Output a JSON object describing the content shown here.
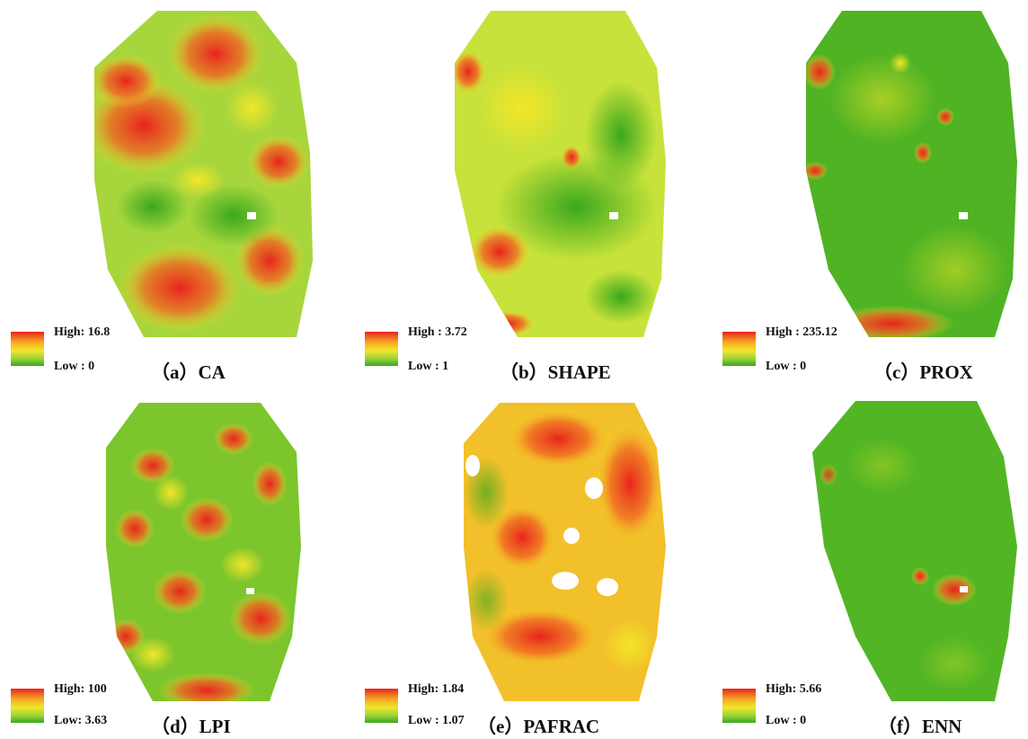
{
  "panels": [
    {
      "letter": "（a）CA",
      "high": "High: 16.8",
      "low": "Low : 0",
      "palette": "ca"
    },
    {
      "letter": "（b）SHAPE",
      "high": "High : 3.72",
      "low": "Low : 1",
      "palette": "shape"
    },
    {
      "letter": "（c）PROX",
      "high": "High : 235.12",
      "low": "Low : 0",
      "palette": "prox"
    },
    {
      "letter": "（d）LPI",
      "high": "High: 100",
      "low": "Low: 3.63",
      "palette": "lpi"
    },
    {
      "letter": "（e）PAFRAC",
      "high": "High: 1.84",
      "low": "Low : 1.07",
      "palette": "pafrac"
    },
    {
      "letter": "（f）ENN",
      "high": "High: 5.66",
      "low": "Low : 0",
      "palette": "enn"
    }
  ],
  "colors": {
    "high": "#e8231e",
    "mid_high": "#f5a623",
    "mid": "#f3e629",
    "mid_low": "#9fd43a",
    "low": "#3aa81e"
  }
}
